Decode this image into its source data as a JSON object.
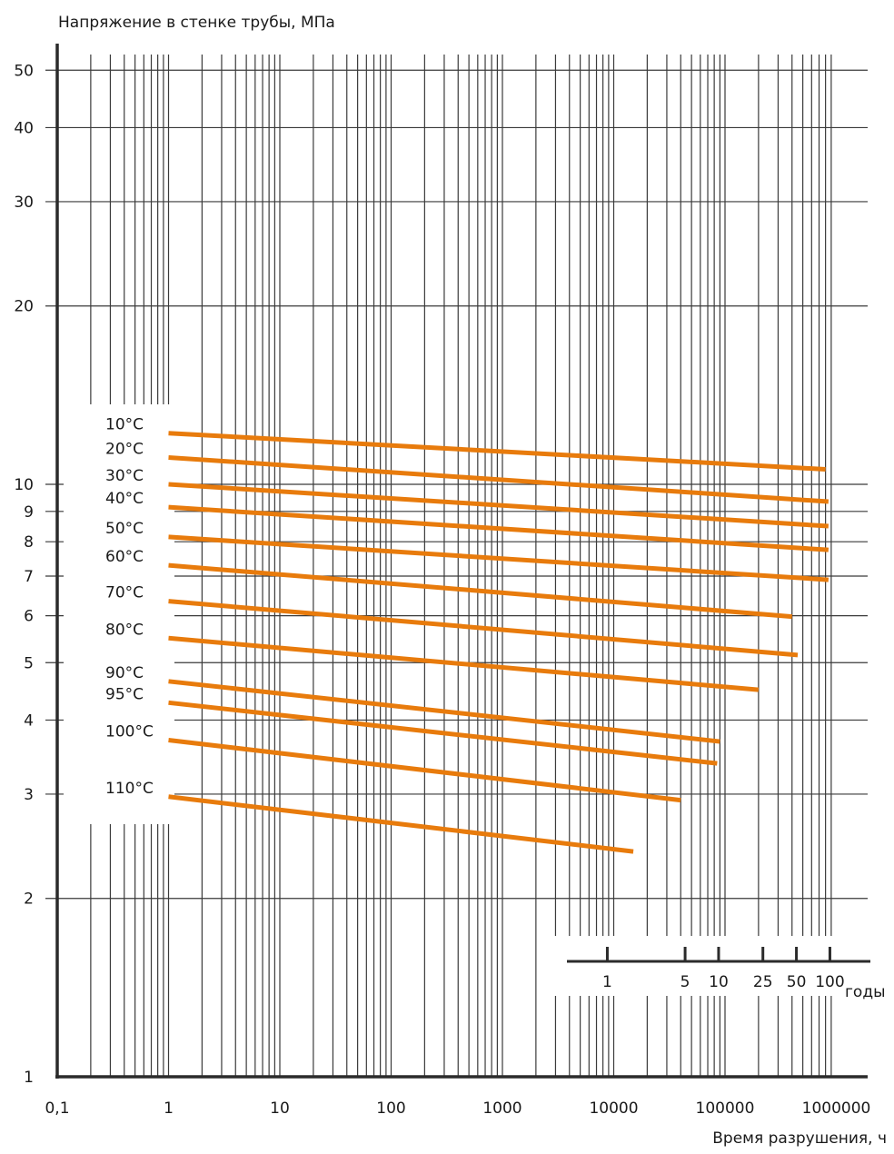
{
  "chart_data": {
    "type": "line",
    "ylabel": "Напряжение в стенке трубы, МПа",
    "xlabel": "Время разрушения, ч",
    "x_scale": "log",
    "y_scale": "log",
    "xlim": [
      0.1,
      1000000
    ],
    "ylim": [
      1,
      50
    ],
    "grid": true,
    "x_ticks": [
      {
        "value": 0.1,
        "label": "0,1"
      },
      {
        "value": 1,
        "label": "1"
      },
      {
        "value": 10,
        "label": "10"
      },
      {
        "value": 100,
        "label": "100"
      },
      {
        "value": 1000,
        "label": "1000"
      },
      {
        "value": 10000,
        "label": "10000"
      },
      {
        "value": 100000,
        "label": "100000"
      },
      {
        "value": 1000000,
        "label": "1000000"
      }
    ],
    "y_ticks": [
      {
        "value": 1,
        "label": "1"
      },
      {
        "value": 2,
        "label": "2"
      },
      {
        "value": 3,
        "label": "3"
      },
      {
        "value": 4,
        "label": "4"
      },
      {
        "value": 5,
        "label": "5"
      },
      {
        "value": 6,
        "label": "6"
      },
      {
        "value": 7,
        "label": "7"
      },
      {
        "value": 8,
        "label": "8"
      },
      {
        "value": 9,
        "label": "9"
      },
      {
        "value": 10,
        "label": "10"
      },
      {
        "value": 20,
        "label": "20"
      },
      {
        "value": 30,
        "label": "30"
      },
      {
        "value": 40,
        "label": "40"
      },
      {
        "value": 50,
        "label": "50"
      }
    ],
    "years_axis": {
      "unit": "годы",
      "ticks": [
        {
          "label": "1",
          "hours": 8760
        },
        {
          "label": "5",
          "hours": 43800
        },
        {
          "label": "10",
          "hours": 87600
        },
        {
          "label": "25",
          "hours": 219000
        },
        {
          "label": "50",
          "hours": 438000
        },
        {
          "label": "100",
          "hours": 876000
        }
      ]
    },
    "series_color": "#e87b0c",
    "series": [
      {
        "name": "10°C",
        "x": [
          1,
          800000
        ],
        "y": [
          12.2,
          10.6
        ]
      },
      {
        "name": "20°C",
        "x": [
          1,
          850000
        ],
        "y": [
          11.1,
          9.35
        ]
      },
      {
        "name": "30°C",
        "x": [
          1,
          850000
        ],
        "y": [
          10.0,
          8.5
        ]
      },
      {
        "name": "40°C",
        "x": [
          1,
          850000
        ],
        "y": [
          9.15,
          7.75
        ]
      },
      {
        "name": "50°C",
        "x": [
          1,
          850000
        ],
        "y": [
          8.15,
          6.9
        ]
      },
      {
        "name": "60°C",
        "x": [
          1,
          400000
        ],
        "y": [
          7.3,
          5.98
        ]
      },
      {
        "name": "70°C",
        "x": [
          1,
          450000
        ],
        "y": [
          6.35,
          5.15
        ]
      },
      {
        "name": "80°C",
        "x": [
          1,
          200000
        ],
        "y": [
          5.5,
          4.5
        ]
      },
      {
        "name": "90°C",
        "x": [
          1,
          90000
        ],
        "y": [
          4.65,
          3.68
        ]
      },
      {
        "name": "95°C",
        "x": [
          1,
          85000
        ],
        "y": [
          4.28,
          3.38
        ]
      },
      {
        "name": "100°C",
        "x": [
          1,
          40000
        ],
        "y": [
          3.7,
          2.93
        ]
      },
      {
        "name": "110°C",
        "x": [
          1,
          15000
        ],
        "y": [
          2.97,
          2.4
        ]
      }
    ]
  }
}
